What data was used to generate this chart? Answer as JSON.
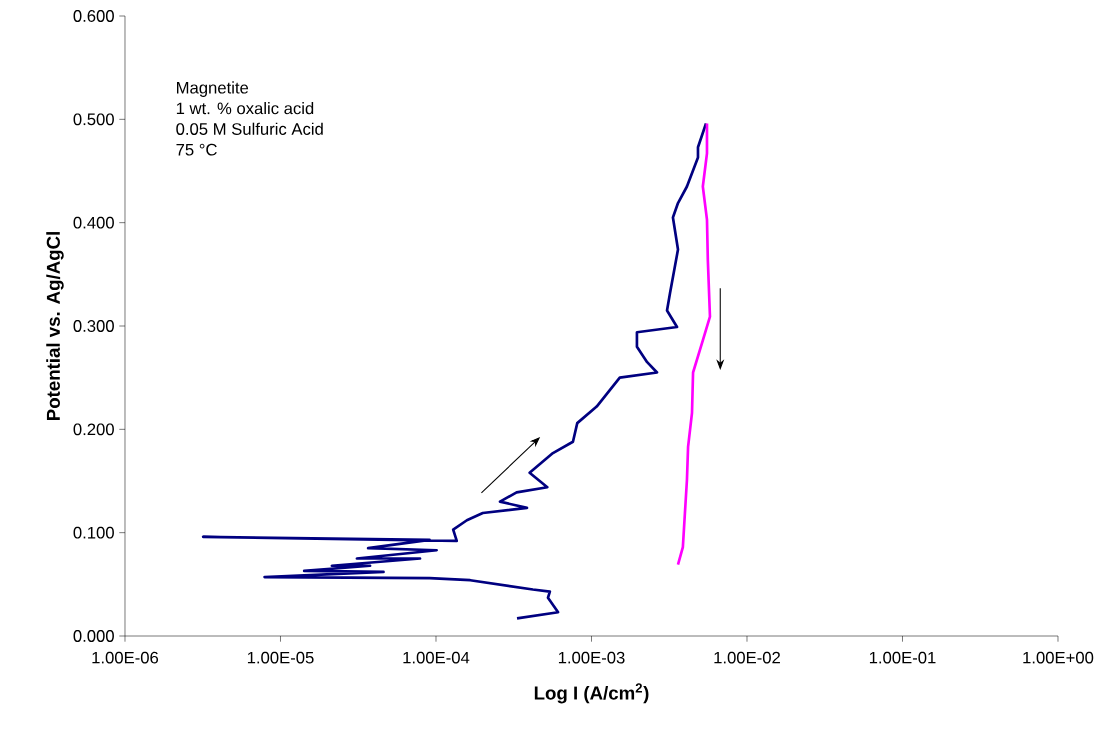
{
  "chart_data": {
    "type": "line",
    "xlabel": "**Log I (A/cm$^{2}$)**",
    "ylabel": "Potential vs. Ag/AgCl",
    "log": "x",
    "grid": false,
    "marker": "none",
    "line_style": "solid",
    "xlim": [
      1e-06,
      1
    ],
    "xticks": [
      {
        "value": 1e-06,
        "label": "1.00E-06"
      },
      {
        "value": 1e-05,
        "label": "1.00E-05"
      },
      {
        "value": 0.0001,
        "label": "1.00E-04"
      },
      {
        "value": 0.001,
        "label": "1.00E-03"
      },
      {
        "value": 0.01,
        "label": "1.00E-02"
      },
      {
        "value": 0.1,
        "label": "1.00E-01"
      },
      {
        "value": 1,
        "label": "1.00E+00"
      }
    ],
    "ylim": [
      0,
      0.6
    ],
    "yticks": [
      {
        "value": 0,
        "label": "0.000"
      },
      {
        "value": 0.1,
        "label": "0.100"
      },
      {
        "value": 0.2,
        "label": "0.200"
      },
      {
        "value": 0.3,
        "label": "0.300"
      },
      {
        "value": 0.4,
        "label": "0.400"
      },
      {
        "value": 0.5,
        "label": "0.500"
      },
      {
        "value": 0.6,
        "label": "0.600"
      }
    ],
    "annotations": [
      "Magnetite",
      "1 wt. % oxalic acid",
      "0.05 M Sulfuric Acid",
      "75 °C"
    ],
    "series": [
      {
        "color": "#000080",
        "x": [
          0.000332,
          0.00061,
          0.000525,
          0.00054,
          0.00042,
          0.000166,
          9.1e-05,
          7.9e-06,
          4.6e-05,
          1.42e-05,
          3.77e-05,
          2.14e-05,
          7.9e-05,
          3.1e-05,
          0.000101,
          3.66e-05,
          9.1e-05,
          3.18e-06,
          0.000136,
          0.000129,
          0.000158,
          0.0002,
          0.000385,
          0.000258,
          0.00033,
          0.00052,
          0.0004,
          0.000565,
          0.00076,
          0.00081,
          0.00108,
          0.00152,
          0.00264,
          0.00228,
          0.00196,
          0.00196,
          0.00355,
          0.00306,
          0.0032,
          0.0036,
          0.00334,
          0.0036,
          0.00411,
          0.00484,
          0.00484,
          0.00545
        ],
        "values": [
          0.017,
          0.023,
          0.037,
          0.043,
          0.045,
          0.054,
          0.056,
          0.057,
          0.062,
          0.063,
          0.068,
          0.068,
          0.075,
          0.075,
          0.083,
          0.085,
          0.093,
          0.096,
          0.092,
          0.103,
          0.112,
          0.119,
          0.124,
          0.13,
          0.139,
          0.144,
          0.158,
          0.177,
          0.188,
          0.206,
          0.222,
          0.25,
          0.255,
          0.265,
          0.28,
          0.294,
          0.299,
          0.315,
          0.332,
          0.374,
          0.405,
          0.419,
          0.435,
          0.463,
          0.473,
          0.496
        ]
      },
      {
        "color": "#ff00ff",
        "x": [
          0.00553,
          0.00553,
          0.0052,
          0.00553,
          0.0056,
          0.00578,
          0.0052,
          0.0045,
          0.00443,
          0.00418,
          0.00411,
          0.00399,
          0.00387,
          0.0036
        ],
        "values": [
          0.496,
          0.467,
          0.435,
          0.403,
          0.364,
          0.309,
          0.286,
          0.255,
          0.216,
          0.183,
          0.151,
          0.119,
          0.086,
          0.069
        ]
      }
    ]
  }
}
